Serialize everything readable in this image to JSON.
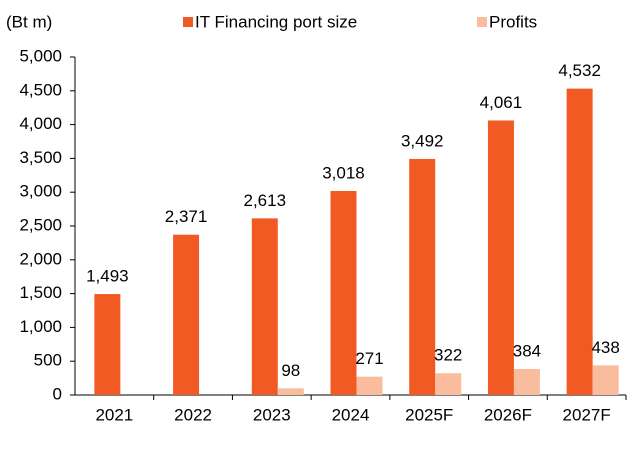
{
  "chart_data": {
    "type": "bar",
    "y_axis_label": "(Bt m)",
    "categories": [
      "2021",
      "2022",
      "2023",
      "2024",
      "2025F",
      "2026F",
      "2027F"
    ],
    "series": [
      {
        "name": "IT Financing port size",
        "color": "#f15a22",
        "values": [
          1493,
          2371,
          2613,
          3018,
          3492,
          4061,
          4532
        ],
        "value_labels": [
          "1,493",
          "2,371",
          "2,613",
          "3,018",
          "3,492",
          "4,061",
          "4,532"
        ]
      },
      {
        "name": "Profits",
        "color": "#f9bc9c",
        "values": [
          null,
          null,
          98,
          271,
          322,
          384,
          438
        ]
      }
    ],
    "ylim": [
      0,
      5000
    ],
    "yticks": [
      0,
      500,
      {
        "value": 1000,
        "label": "1,000"
      },
      {
        "value": 1500,
        "label": "1,500"
      },
      {
        "value": 2000,
        "label": "2,000"
      },
      {
        "value": 2500,
        "label": "2,500"
      },
      {
        "value": 3000,
        "label": "3,000"
      },
      {
        "value": 3500,
        "label": "3,500"
      },
      {
        "value": 4000,
        "label": "4,000"
      },
      {
        "value": 4500,
        "label": "4,500"
      },
      {
        "value": 5000,
        "label": "5,000"
      }
    ],
    "legend": "top"
  }
}
